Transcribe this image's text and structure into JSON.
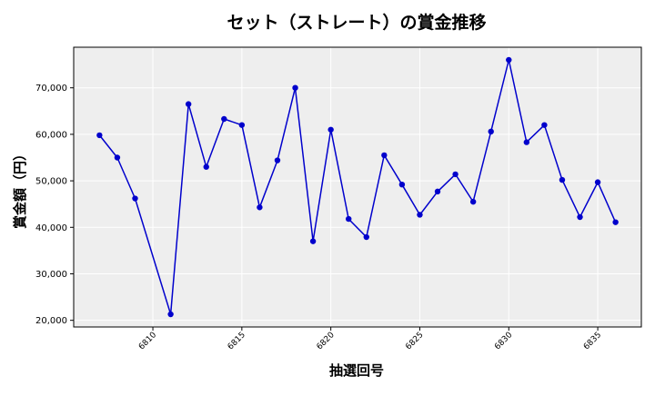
{
  "chart_data": {
    "type": "line",
    "title": "セット（ストレート）の賞金推移",
    "xlabel": "抽選回号",
    "ylabel": "賞金額（円）",
    "x": [
      6807,
      6808,
      6809,
      6811,
      6812,
      6813,
      6814,
      6815,
      6816,
      6817,
      6818,
      6819,
      6820,
      6821,
      6822,
      6823,
      6824,
      6825,
      6826,
      6827,
      6828,
      6829,
      6830,
      6831,
      6832,
      6833,
      6834,
      6835,
      6836
    ],
    "series": [
      {
        "values": [
          59800,
          55000,
          46200,
          21300,
          66500,
          53000,
          63300,
          62000,
          44300,
          54400,
          70000,
          37000,
          61000,
          41800,
          37900,
          55500,
          49200,
          42700,
          47700,
          51400,
          45500,
          60600,
          76000,
          58300,
          62000,
          50200,
          42200,
          49700,
          41100
        ],
        "color": "#0000cc"
      }
    ],
    "xticks": [
      6810,
      6815,
      6820,
      6825,
      6830,
      6835
    ],
    "xticklabels": [
      "6810",
      "6815",
      "6820",
      "6825",
      "6830",
      "6835"
    ],
    "yticks": [
      20000,
      30000,
      40000,
      50000,
      60000,
      70000
    ],
    "yticklabels": [
      "20,000",
      "30,000",
      "40,000",
      "50,000",
      "60,000",
      "70,000"
    ],
    "xlim": [
      6805.55,
      6837.45
    ],
    "ylim": [
      18570,
      78730
    ],
    "grid": true,
    "background": "#eeeeee"
  }
}
